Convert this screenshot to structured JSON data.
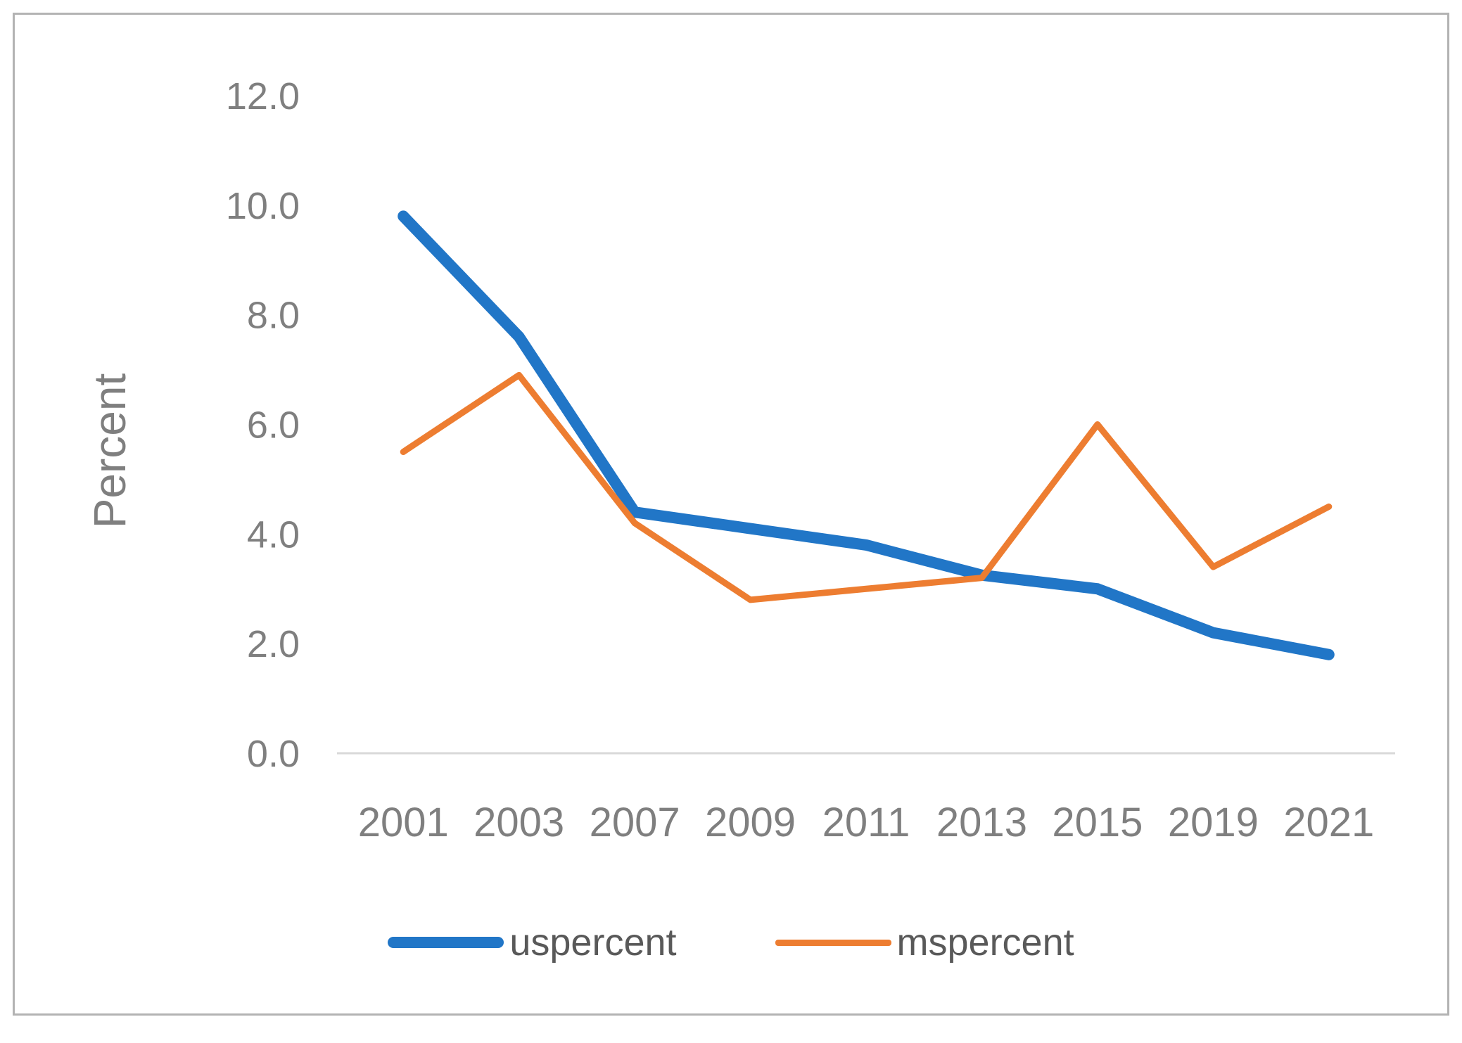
{
  "chart_data": {
    "type": "line",
    "categories": [
      "2001",
      "2003",
      "2007",
      "2009",
      "2011",
      "2013",
      "2015",
      "2019",
      "2021"
    ],
    "series": [
      {
        "name": "uspercent",
        "color": "#2176c7",
        "values": [
          9.8,
          7.6,
          4.4,
          4.1,
          3.8,
          3.25,
          3.0,
          2.2,
          1.8
        ]
      },
      {
        "name": "mspercent",
        "color": "#ed7d31",
        "values": [
          5.5,
          6.9,
          4.2,
          2.8,
          3.0,
          3.2,
          6.0,
          3.4,
          4.5
        ]
      }
    ],
    "title": "",
    "xlabel": "",
    "ylabel": "Percent",
    "ylim": [
      0,
      12
    ],
    "ytick_step": 2,
    "ytick_labels": [
      "0.0",
      "2.0",
      "4.0",
      "6.0",
      "8.0",
      "10.0",
      "12.0"
    ],
    "grid": false,
    "legend_position": "bottom",
    "axis_color": "#d9d9d9",
    "text_color": "#7f7f7f"
  },
  "legend": {
    "items": [
      {
        "label": "uspercent"
      },
      {
        "label": "mspercent"
      }
    ]
  }
}
